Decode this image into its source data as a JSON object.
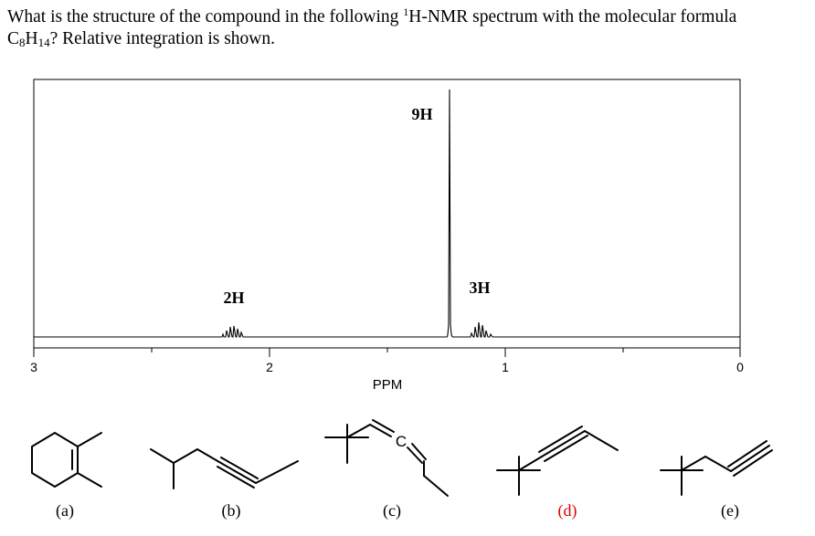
{
  "question": {
    "line1_pre": "What is the structure of the compound in the following ",
    "nucleus_superscript": "1",
    "line1_post": "H-NMR spectrum with the molecular formula",
    "formula_c": "C",
    "formula_c_count": "8",
    "formula_h": "H",
    "formula_h_count": "14",
    "line2_post": "? Relative integration is shown."
  },
  "spectrum": {
    "axis_label": "PPM",
    "tick_labels": [
      "3",
      "2",
      "1",
      "0"
    ],
    "peaks": [
      {
        "integration": "2H",
        "shift_ppm": 2.1
      },
      {
        "integration": "9H",
        "shift_ppm": 1.25
      },
      {
        "integration": "3H",
        "shift_ppm": 1.1
      }
    ]
  },
  "answers": [
    {
      "label": "(a)",
      "color": "#000000"
    },
    {
      "label": "(b)",
      "color": "#000000"
    },
    {
      "label": "(c)",
      "color": "#000000"
    },
    {
      "label": "(d)",
      "color": "#e60000"
    },
    {
      "label": "(e)",
      "color": "#000000"
    }
  ],
  "answers_text": {
    "c_atom": "C"
  }
}
